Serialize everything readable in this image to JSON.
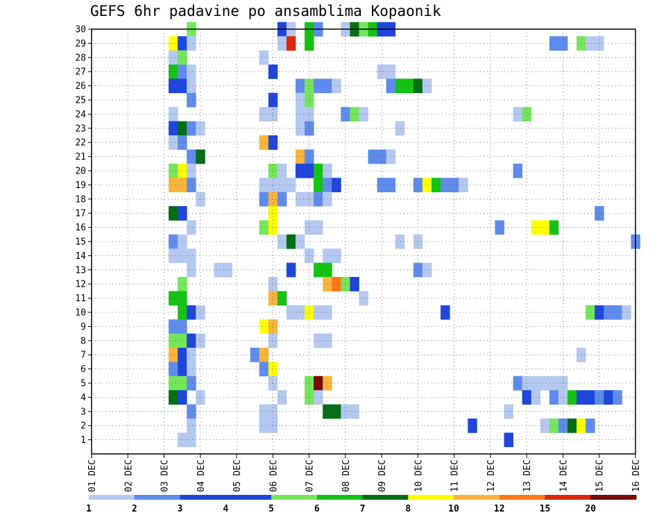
{
  "title": "GEFS 6hr padavine po ansamblima Kopaonik",
  "chart_data": {
    "type": "heatmap",
    "title": "GEFS 6hr padavine po ansamblima Kopaonik",
    "x_tick_labels": [
      "01 DEC",
      "02 DEC",
      "03 DEC",
      "04 DEC",
      "05 DEC",
      "06 DEC",
      "07 DEC",
      "08 DEC",
      "09 DEC",
      "10 DEC",
      "11 DEC",
      "12 DEC",
      "13 DEC",
      "14 DEC",
      "15 DEC",
      "16 DEC"
    ],
    "x_unit": "6-hour step from 01 DEC 00Z",
    "xlim": [
      0,
      60
    ],
    "y_tick_labels": [
      1,
      2,
      3,
      4,
      5,
      6,
      7,
      8,
      9,
      10,
      11,
      12,
      13,
      14,
      15,
      16,
      17,
      18,
      19,
      20,
      21,
      22,
      23,
      24,
      25,
      26,
      27,
      28,
      29,
      30
    ],
    "ylim": [
      0,
      30
    ],
    "grid": true,
    "colorbar": {
      "position": "bottom",
      "labels": [
        "1",
        "2",
        "3",
        "4",
        "5",
        "6",
        "7",
        "8",
        "10",
        "12",
        "15",
        "20"
      ],
      "colors": [
        "#b4c8f0",
        "#5f8cec",
        "#1e46dc",
        "#1e46dc",
        "#74e65a",
        "#14c314",
        "#056e14",
        "#ffff00",
        "#fab43c",
        "#fa7814",
        "#dc280a",
        "#780a0a"
      ],
      "levels": [
        1,
        2,
        3,
        4,
        5,
        6,
        7,
        8,
        10,
        12,
        15,
        20
      ]
    },
    "cells": [
      [
        30,
        11,
        5
      ],
      [
        30,
        21,
        3
      ],
      [
        30,
        22,
        1
      ],
      [
        30,
        24,
        6
      ],
      [
        30,
        25,
        2
      ],
      [
        30,
        28,
        1
      ],
      [
        30,
        29,
        7
      ],
      [
        30,
        30,
        5
      ],
      [
        30,
        31,
        6
      ],
      [
        30,
        32,
        3
      ],
      [
        30,
        33,
        3
      ],
      [
        29,
        9,
        8
      ],
      [
        29,
        10,
        4
      ],
      [
        29,
        11,
        1
      ],
      [
        29,
        21,
        1
      ],
      [
        29,
        22,
        15
      ],
      [
        29,
        24,
        6
      ],
      [
        29,
        51,
        2
      ],
      [
        29,
        52,
        2
      ],
      [
        29,
        54,
        5
      ],
      [
        29,
        55,
        1
      ],
      [
        29,
        56,
        1
      ],
      [
        28,
        9,
        1
      ],
      [
        28,
        10,
        5
      ],
      [
        28,
        19,
        1
      ],
      [
        27,
        9,
        6
      ],
      [
        27,
        10,
        2
      ],
      [
        27,
        11,
        1
      ],
      [
        27,
        20,
        3
      ],
      [
        27,
        32,
        1
      ],
      [
        27,
        33,
        1
      ],
      [
        26,
        9,
        3
      ],
      [
        26,
        10,
        3
      ],
      [
        26,
        11,
        1
      ],
      [
        26,
        23,
        2
      ],
      [
        26,
        24,
        5
      ],
      [
        26,
        25,
        2
      ],
      [
        26,
        26,
        2
      ],
      [
        26,
        27,
        1
      ],
      [
        26,
        33,
        2
      ],
      [
        26,
        34,
        6
      ],
      [
        26,
        35,
        6
      ],
      [
        26,
        36,
        7
      ],
      [
        26,
        37,
        1
      ],
      [
        25,
        11,
        2
      ],
      [
        25,
        20,
        3
      ],
      [
        25,
        23,
        1
      ],
      [
        25,
        24,
        5
      ],
      [
        24,
        9,
        1
      ],
      [
        24,
        19,
        1
      ],
      [
        24,
        20,
        1
      ],
      [
        24,
        23,
        1
      ],
      [
        24,
        24,
        1
      ],
      [
        24,
        28,
        2
      ],
      [
        24,
        29,
        5
      ],
      [
        24,
        30,
        1
      ],
      [
        24,
        47,
        1
      ],
      [
        24,
        48,
        5
      ],
      [
        23,
        9,
        3
      ],
      [
        23,
        10,
        7
      ],
      [
        23,
        11,
        2
      ],
      [
        23,
        12,
        1
      ],
      [
        23,
        23,
        1
      ],
      [
        23,
        24,
        2
      ],
      [
        23,
        34,
        1
      ],
      [
        22,
        9,
        1
      ],
      [
        22,
        10,
        2
      ],
      [
        22,
        19,
        10
      ],
      [
        22,
        20,
        3
      ],
      [
        21,
        11,
        2
      ],
      [
        21,
        12,
        7
      ],
      [
        21,
        23,
        10
      ],
      [
        21,
        24,
        2
      ],
      [
        21,
        31,
        2
      ],
      [
        21,
        32,
        2
      ],
      [
        21,
        33,
        1
      ],
      [
        20,
        9,
        5
      ],
      [
        20,
        10,
        8
      ],
      [
        20,
        11,
        1
      ],
      [
        20,
        20,
        5
      ],
      [
        20,
        21,
        1
      ],
      [
        20,
        23,
        3
      ],
      [
        20,
        24,
        3
      ],
      [
        20,
        25,
        6
      ],
      [
        20,
        26,
        1
      ],
      [
        20,
        47,
        2
      ],
      [
        19,
        9,
        10
      ],
      [
        19,
        10,
        10
      ],
      [
        19,
        11,
        2
      ],
      [
        19,
        19,
        1
      ],
      [
        19,
        20,
        1
      ],
      [
        19,
        21,
        1
      ],
      [
        19,
        22,
        1
      ],
      [
        19,
        25,
        6
      ],
      [
        19,
        26,
        2
      ],
      [
        19,
        27,
        3
      ],
      [
        19,
        32,
        2
      ],
      [
        19,
        33,
        2
      ],
      [
        19,
        36,
        2
      ],
      [
        19,
        37,
        8
      ],
      [
        19,
        38,
        6
      ],
      [
        19,
        39,
        2
      ],
      [
        19,
        40,
        2
      ],
      [
        19,
        41,
        1
      ],
      [
        18,
        12,
        1
      ],
      [
        18,
        19,
        2
      ],
      [
        18,
        20,
        10
      ],
      [
        18,
        21,
        2
      ],
      [
        18,
        23,
        1
      ],
      [
        18,
        24,
        1
      ],
      [
        18,
        25,
        2
      ],
      [
        18,
        26,
        1
      ],
      [
        17,
        9,
        7
      ],
      [
        17,
        10,
        3
      ],
      [
        17,
        20,
        8
      ],
      [
        17,
        56,
        2
      ],
      [
        16,
        11,
        1
      ],
      [
        16,
        19,
        5
      ],
      [
        16,
        20,
        8
      ],
      [
        16,
        24,
        1
      ],
      [
        16,
        25,
        1
      ],
      [
        16,
        45,
        2
      ],
      [
        16,
        49,
        8
      ],
      [
        16,
        50,
        8
      ],
      [
        16,
        51,
        6
      ],
      [
        15,
        9,
        2
      ],
      [
        15,
        10,
        1
      ],
      [
        15,
        21,
        1
      ],
      [
        15,
        22,
        7
      ],
      [
        15,
        23,
        1
      ],
      [
        15,
        34,
        1
      ],
      [
        15,
        36,
        1
      ],
      [
        15,
        60,
        2
      ],
      [
        14,
        9,
        1
      ],
      [
        14,
        10,
        1
      ],
      [
        14,
        11,
        1
      ],
      [
        14,
        24,
        1
      ],
      [
        14,
        26,
        1
      ],
      [
        14,
        27,
        1
      ],
      [
        13,
        11,
        1
      ],
      [
        13,
        14,
        1
      ],
      [
        13,
        15,
        1
      ],
      [
        13,
        22,
        3
      ],
      [
        13,
        25,
        6
      ],
      [
        13,
        26,
        6
      ],
      [
        13,
        36,
        2
      ],
      [
        13,
        37,
        1
      ],
      [
        12,
        10,
        5
      ],
      [
        12,
        20,
        1
      ],
      [
        12,
        26,
        10
      ],
      [
        12,
        27,
        12
      ],
      [
        12,
        28,
        5
      ],
      [
        12,
        29,
        3
      ],
      [
        11,
        9,
        6
      ],
      [
        11,
        10,
        6
      ],
      [
        11,
        20,
        10
      ],
      [
        11,
        21,
        6
      ],
      [
        11,
        30,
        1
      ],
      [
        10,
        10,
        6
      ],
      [
        10,
        11,
        3
      ],
      [
        10,
        12,
        1
      ],
      [
        10,
        22,
        1
      ],
      [
        10,
        23,
        1
      ],
      [
        10,
        24,
        8
      ],
      [
        10,
        25,
        1
      ],
      [
        10,
        26,
        1
      ],
      [
        10,
        39,
        3
      ],
      [
        10,
        55,
        5
      ],
      [
        10,
        56,
        3
      ],
      [
        10,
        57,
        2
      ],
      [
        10,
        58,
        2
      ],
      [
        10,
        59,
        1
      ],
      [
        9,
        9,
        2
      ],
      [
        9,
        10,
        2
      ],
      [
        9,
        19,
        8
      ],
      [
        9,
        20,
        10
      ],
      [
        8,
        9,
        5
      ],
      [
        8,
        10,
        5
      ],
      [
        8,
        11,
        3
      ],
      [
        8,
        12,
        1
      ],
      [
        8,
        20,
        1
      ],
      [
        8,
        25,
        1
      ],
      [
        8,
        26,
        1
      ],
      [
        7,
        9,
        10
      ],
      [
        7,
        10,
        3
      ],
      [
        7,
        11,
        1
      ],
      [
        7,
        18,
        2
      ],
      [
        7,
        19,
        10
      ],
      [
        7,
        54,
        1
      ],
      [
        6,
        9,
        2
      ],
      [
        6,
        10,
        3
      ],
      [
        6,
        11,
        1
      ],
      [
        6,
        19,
        2
      ],
      [
        6,
        20,
        8
      ],
      [
        5,
        9,
        5
      ],
      [
        5,
        10,
        5
      ],
      [
        5,
        11,
        2
      ],
      [
        5,
        20,
        1
      ],
      [
        5,
        24,
        5
      ],
      [
        5,
        25,
        20
      ],
      [
        5,
        26,
        10
      ],
      [
        5,
        47,
        2
      ],
      [
        5,
        48,
        1
      ],
      [
        5,
        49,
        1
      ],
      [
        5,
        50,
        1
      ],
      [
        5,
        51,
        1
      ],
      [
        5,
        52,
        1
      ],
      [
        4,
        9,
        7
      ],
      [
        4,
        10,
        3
      ],
      [
        4,
        12,
        1
      ],
      [
        4,
        21,
        1
      ],
      [
        4,
        24,
        5
      ],
      [
        4,
        25,
        1
      ],
      [
        4,
        48,
        3
      ],
      [
        4,
        49,
        1
      ],
      [
        4,
        51,
        2
      ],
      [
        4,
        52,
        1
      ],
      [
        4,
        53,
        6
      ],
      [
        4,
        54,
        3
      ],
      [
        4,
        55,
        3
      ],
      [
        4,
        56,
        2
      ],
      [
        4,
        57,
        3
      ],
      [
        4,
        58,
        2
      ],
      [
        3,
        11,
        2
      ],
      [
        3,
        19,
        1
      ],
      [
        3,
        20,
        1
      ],
      [
        3,
        26,
        7
      ],
      [
        3,
        27,
        7
      ],
      [
        3,
        28,
        1
      ],
      [
        3,
        29,
        1
      ],
      [
        3,
        46,
        1
      ],
      [
        2,
        11,
        1
      ],
      [
        2,
        19,
        1
      ],
      [
        2,
        20,
        1
      ],
      [
        2,
        42,
        3
      ],
      [
        2,
        50,
        1
      ],
      [
        2,
        51,
        5
      ],
      [
        2,
        52,
        2
      ],
      [
        2,
        53,
        7
      ],
      [
        2,
        54,
        8
      ],
      [
        2,
        55,
        2
      ],
      [
        1,
        10,
        1
      ],
      [
        1,
        11,
        1
      ],
      [
        1,
        46,
        3
      ]
    ]
  }
}
